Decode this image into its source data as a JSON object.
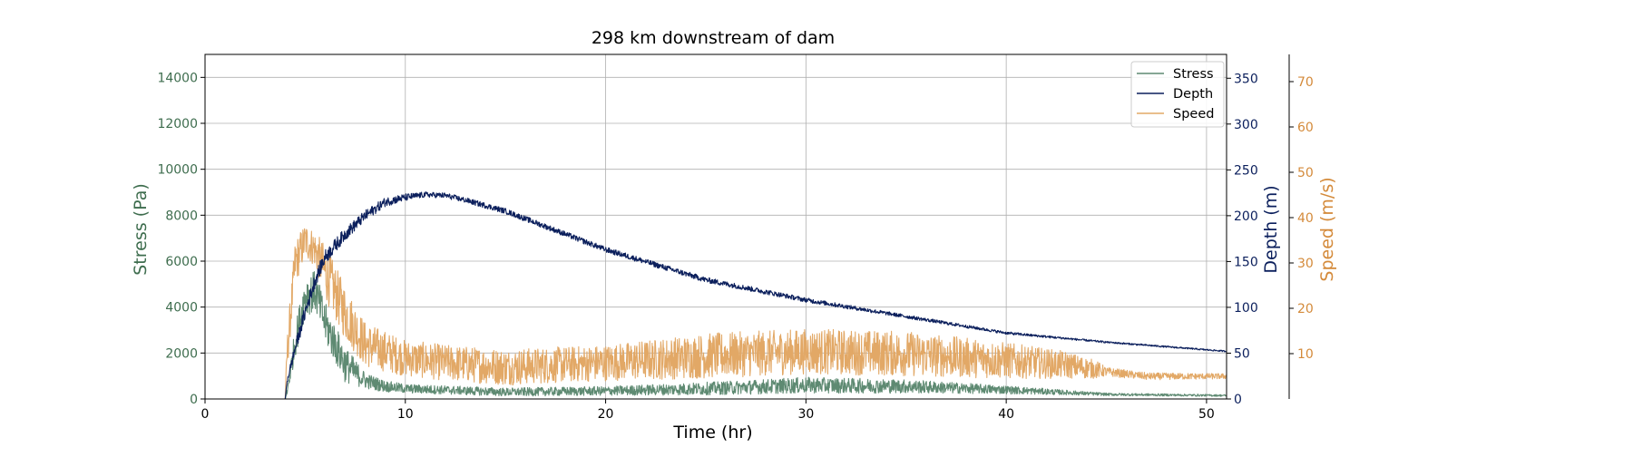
{
  "chart_data": {
    "type": "line",
    "title": "298 km downstream of dam",
    "xlabel": "Time (hr)",
    "xlim": [
      0,
      51
    ],
    "xticks": [
      0,
      10,
      20,
      30,
      40,
      50
    ],
    "grid": true,
    "legend_position": "top-right",
    "axes": {
      "stress": {
        "label": "Stress (Pa)",
        "ylim": [
          0,
          15000
        ],
        "ticks": [
          0,
          2000,
          4000,
          6000,
          8000,
          10000,
          12000,
          14000
        ],
        "color": "#3e6d4e",
        "side": "left"
      },
      "depth": {
        "label": "Depth (m)",
        "ylim": [
          0,
          376
        ],
        "ticks": [
          0,
          50,
          100,
          150,
          200,
          250,
          300,
          350
        ],
        "color": "#0b1f5c",
        "side": "right"
      },
      "speed": {
        "label": "Speed (m/s)",
        "ylim": [
          0,
          76
        ],
        "ticks": [
          10,
          20,
          30,
          40,
          50,
          60,
          70
        ],
        "color": "#d48a3a",
        "side": "right-outer"
      }
    },
    "series": [
      {
        "name": "Stress",
        "axis": "stress",
        "color": "#5e8a72",
        "x": [
          0,
          4.0,
          4.1,
          4.5,
          5.0,
          5.5,
          6.0,
          7.0,
          8.0,
          9.0,
          10,
          15,
          20,
          25,
          30,
          35,
          40,
          45,
          51
        ],
        "y": [
          0,
          0,
          300,
          2500,
          4500,
          4700,
          3300,
          1500,
          800,
          550,
          450,
          300,
          350,
          450,
          600,
          550,
          400,
          200,
          150
        ],
        "noise": [
          0,
          0,
          200,
          700,
          900,
          900,
          900,
          800,
          350,
          250,
          200,
          180,
          200,
          280,
          350,
          300,
          180,
          60,
          40
        ]
      },
      {
        "name": "Depth",
        "axis": "depth",
        "color": "#0b1f5c",
        "x": [
          0,
          4.0,
          4.1,
          4.5,
          5.0,
          5.5,
          6.0,
          7.0,
          8.0,
          9.0,
          10,
          11,
          12,
          13,
          15,
          20,
          25,
          30,
          35,
          40,
          45,
          51
        ],
        "y": [
          0,
          0,
          20,
          55,
          95,
          130,
          155,
          180,
          200,
          215,
          220,
          223,
          222,
          217,
          205,
          163,
          130,
          108,
          90,
          72,
          62,
          52
        ],
        "noise": [
          0,
          0,
          3,
          7,
          8,
          8,
          8,
          7,
          6,
          5,
          4,
          3,
          3,
          3,
          3,
          3,
          3,
          2.5,
          2,
          1.5,
          1,
          0.8
        ]
      },
      {
        "name": "Speed",
        "axis": "speed",
        "color": "#e2a866",
        "x": [
          0,
          4.0,
          4.1,
          4.5,
          5.0,
          5.5,
          6.0,
          7.0,
          8.0,
          10,
          12,
          15,
          20,
          25,
          30,
          35,
          40,
          43,
          44.5,
          45,
          47,
          51
        ],
        "y": [
          0,
          0,
          10,
          30,
          35,
          33,
          28,
          19,
          12,
          9,
          8,
          7,
          8,
          9.5,
          10.5,
          10,
          8.5,
          7.5,
          6.5,
          6,
          5,
          5
        ],
        "noise": [
          0,
          0,
          4,
          5,
          4,
          4,
          6,
          6,
          5,
          4,
          4,
          4,
          4,
          5,
          5,
          5,
          4,
          3,
          2,
          1,
          0.8,
          0.6
        ]
      }
    ]
  }
}
